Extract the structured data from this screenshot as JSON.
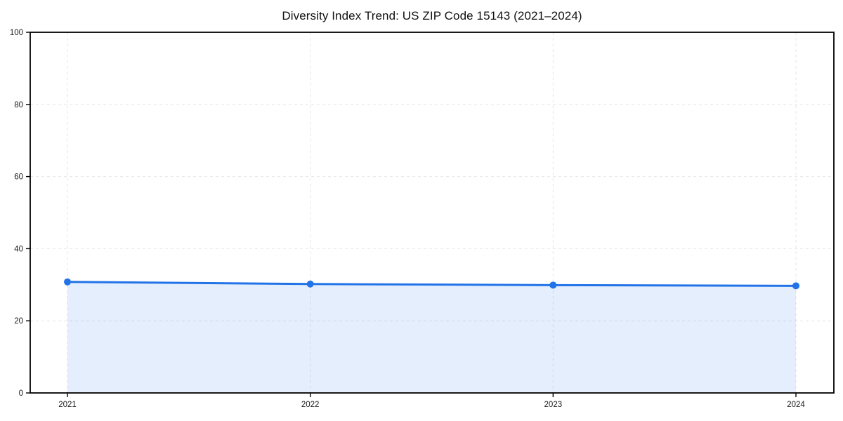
{
  "chart_data": {
    "type": "line",
    "title": "Diversity Index Trend: US ZIP Code 15143 (2021–2024)",
    "categories": [
      "2021",
      "2022",
      "2023",
      "2024"
    ],
    "series": [
      {
        "name": "Diversity Index",
        "values": [
          30.8,
          30.2,
          29.9,
          29.7
        ]
      }
    ],
    "xlabel": "",
    "ylabel": "",
    "ylim": [
      0,
      100
    ],
    "yticks": [
      0,
      20,
      40,
      60,
      80,
      100
    ],
    "grid": true,
    "grid_style": "dashed",
    "legend_position": "none",
    "line_color": "#2273e8",
    "fill_color": "rgba(34,115,232,0.12)",
    "marker": "circle",
    "area_fill": true,
    "colors": {
      "spine": "#000000",
      "gridline": "#e6e6e6",
      "tick_label": "#1a1a1a",
      "background": "#ffffff"
    }
  }
}
